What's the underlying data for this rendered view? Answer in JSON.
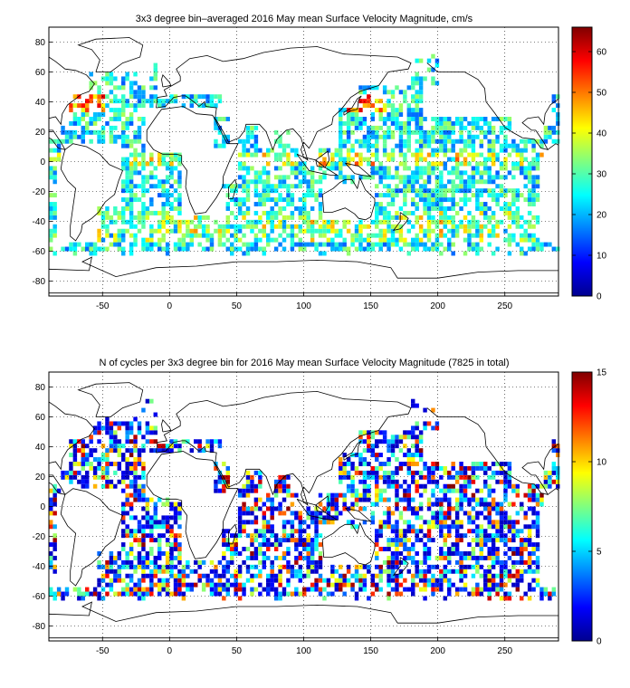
{
  "panels": [
    {
      "id": "velocity",
      "title": "3x3 degree bin–averaged 2016 May mean Surface Velocity Magnitude, cm/s",
      "x_ticks": [
        "-50",
        "0",
        "50",
        "100",
        "150",
        "200",
        "250"
      ],
      "y_ticks": [
        "80",
        "60",
        "40",
        "20",
        "0",
        "-20",
        "-40",
        "-60",
        "-80"
      ],
      "colorbar_ticks": [
        "60",
        "50",
        "40",
        "30",
        "20",
        "10",
        "0"
      ],
      "colorbar_range": [
        0,
        66
      ],
      "colormap": "jet"
    },
    {
      "id": "cycles",
      "title": "N of cycles per 3x3 degree bin for 2016 May mean Surface Velocity Magnitude (7825 in total)",
      "x_ticks": [
        "-50",
        "0",
        "50",
        "100",
        "150",
        "200",
        "250"
      ],
      "y_ticks": [
        "80",
        "60",
        "40",
        "20",
        "0",
        "-20",
        "-40",
        "-60",
        "-80"
      ],
      "colorbar_ticks": [
        "15",
        "10",
        "5",
        "0"
      ],
      "colorbar_range": [
        0,
        15
      ],
      "colormap": "jet"
    }
  ],
  "chart_data": [
    {
      "type": "heatmap",
      "title": "3x3 degree bin–averaged 2016 May mean Surface Velocity Magnitude, cm/s",
      "xlim": [
        -90,
        290
      ],
      "ylim": [
        -90,
        90
      ],
      "bin_size_deg": 3,
      "value_range": [
        0,
        66
      ],
      "colormap": "jet",
      "grid": true
    },
    {
      "type": "heatmap",
      "title": "N of cycles per 3x3 degree bin for 2016 May mean Surface Velocity Magnitude (7825 in total)",
      "xlim": [
        -90,
        290
      ],
      "ylim": [
        -90,
        90
      ],
      "bin_size_deg": 3,
      "value_range": [
        0,
        15
      ],
      "colormap": "jet",
      "grid": true
    }
  ]
}
